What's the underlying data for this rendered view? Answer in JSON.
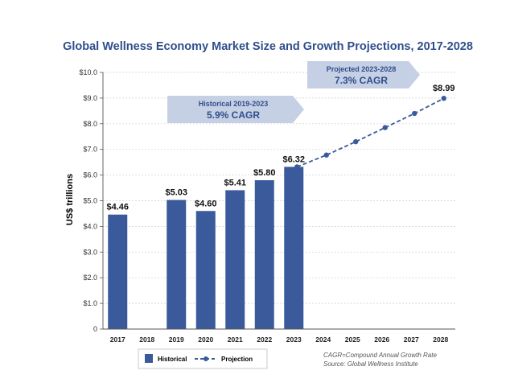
{
  "chart_data": {
    "type": "bar",
    "title": "Global Wellness Economy Market Size and Growth Projections, 2017-2028",
    "ylabel": "US$ trillions",
    "ylim": [
      0,
      10
    ],
    "yticks": [
      "0",
      "$1.0",
      "$2.0",
      "$3.0",
      "$4.0",
      "$5.0",
      "$6.0",
      "$7.0",
      "$8.0",
      "$9.0",
      "$10.0"
    ],
    "categories": [
      "2017",
      "2018",
      "2019",
      "2020",
      "2021",
      "2022",
      "2023",
      "2024",
      "2025",
      "2026",
      "2027",
      "2028"
    ],
    "series": [
      {
        "name": "Historical",
        "type": "bar",
        "color": "#3a5a9b",
        "points": [
          {
            "x": "2017",
            "y": 4.46,
            "label": "$4.46"
          },
          {
            "x": "2019",
            "y": 5.03,
            "label": "$5.03"
          },
          {
            "x": "2020",
            "y": 4.6,
            "label": "$4.60"
          },
          {
            "x": "2021",
            "y": 5.41,
            "label": "$5.41"
          },
          {
            "x": "2022",
            "y": 5.8,
            "label": "$5.80"
          },
          {
            "x": "2023",
            "y": 6.32,
            "label": "$6.32"
          }
        ]
      },
      {
        "name": "Projection",
        "type": "line",
        "color": "#3a5a9b",
        "points": [
          {
            "x": "2023",
            "y": 6.32
          },
          {
            "x": "2024",
            "y": 6.78
          },
          {
            "x": "2025",
            "y": 7.3
          },
          {
            "x": "2026",
            "y": 7.85
          },
          {
            "x": "2027",
            "y": 8.4
          },
          {
            "x": "2028",
            "y": 8.99,
            "label": "$8.99"
          }
        ]
      }
    ],
    "annotations": [
      {
        "id": "historical",
        "line1": "Historical 2019-2023",
        "line2": "5.9% CAGR"
      },
      {
        "id": "projected",
        "line1": "Projected 2023-2028",
        "line2": "7.3% CAGR"
      }
    ],
    "legend": {
      "historical": "Historical",
      "projection": "Projection"
    },
    "notes": [
      "CAGR=Compound Annual Growth Rate",
      "Source: Global Wellness Institute"
    ],
    "colors": {
      "title": "#2f4e8c",
      "bar": "#3a5a9b",
      "arrow_fill": "#c6d0e4",
      "arrow_text": "#2f4e8c",
      "grid": "#cfcfcf"
    }
  }
}
